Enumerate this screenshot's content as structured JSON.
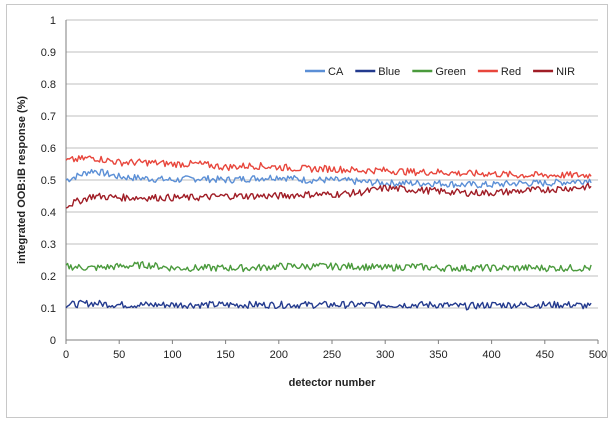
{
  "chart_data": {
    "type": "line",
    "title": "",
    "xlabel": "detector number",
    "ylabel": "integrated OOB:IB response (%)",
    "xlim": [
      0,
      500
    ],
    "ylim": [
      0,
      1
    ],
    "x_ticks": [
      "0",
      "50",
      "100",
      "150",
      "200",
      "250",
      "300",
      "350",
      "400",
      "450",
      "500"
    ],
    "y_ticks": [
      "0",
      "0.1",
      "0.2",
      "0.3",
      "0.4",
      "0.5",
      "0.6",
      "0.7",
      "0.8",
      "0.9",
      "1"
    ],
    "grid": "horizontal",
    "legend_position": "top-right",
    "x": [
      0,
      25,
      50,
      75,
      100,
      125,
      150,
      175,
      200,
      225,
      250,
      275,
      300,
      325,
      350,
      375,
      400,
      425,
      450,
      475,
      494
    ],
    "series": [
      {
        "name": "CA",
        "color": "#5b8fd6",
        "values": [
          0.5,
          0.53,
          0.51,
          0.505,
          0.5,
          0.505,
          0.5,
          0.505,
          0.51,
          0.5,
          0.5,
          0.495,
          0.49,
          0.49,
          0.49,
          0.485,
          0.485,
          0.49,
          0.49,
          0.495,
          0.5
        ]
      },
      {
        "name": "Blue",
        "color": "#233a8e",
        "values": [
          0.11,
          0.115,
          0.11,
          0.11,
          0.11,
          0.11,
          0.11,
          0.11,
          0.11,
          0.11,
          0.11,
          0.11,
          0.11,
          0.11,
          0.11,
          0.105,
          0.11,
          0.11,
          0.11,
          0.11,
          0.105
        ]
      },
      {
        "name": "Green",
        "color": "#4a9a3c",
        "values": [
          0.23,
          0.225,
          0.23,
          0.235,
          0.225,
          0.225,
          0.225,
          0.225,
          0.23,
          0.23,
          0.23,
          0.23,
          0.225,
          0.23,
          0.225,
          0.225,
          0.225,
          0.225,
          0.225,
          0.225,
          0.225
        ]
      },
      {
        "name": "Red",
        "color": "#e8463c",
        "values": [
          0.56,
          0.57,
          0.555,
          0.555,
          0.55,
          0.55,
          0.54,
          0.545,
          0.54,
          0.535,
          0.535,
          0.53,
          0.53,
          0.525,
          0.525,
          0.52,
          0.52,
          0.515,
          0.515,
          0.515,
          0.515
        ]
      },
      {
        "name": "NIR",
        "color": "#a01d26",
        "values": [
          0.42,
          0.45,
          0.445,
          0.445,
          0.445,
          0.445,
          0.45,
          0.45,
          0.45,
          0.455,
          0.455,
          0.46,
          0.475,
          0.47,
          0.465,
          0.46,
          0.46,
          0.465,
          0.47,
          0.475,
          0.48
        ]
      }
    ]
  }
}
